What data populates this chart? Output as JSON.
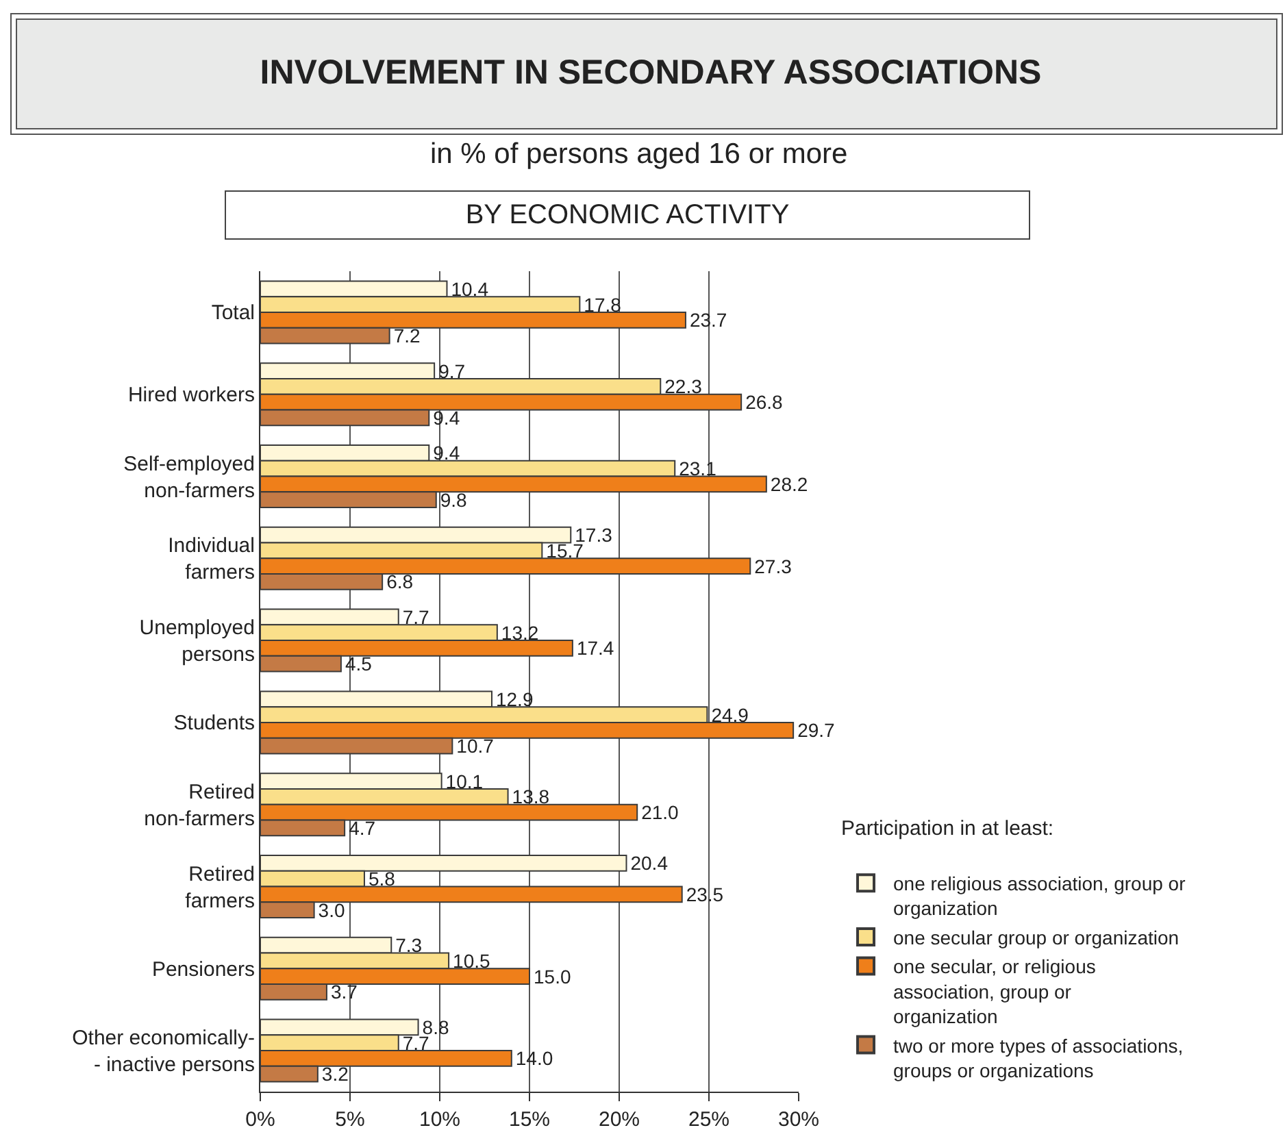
{
  "chart_data": {
    "type": "bar",
    "orientation": "horizontal",
    "title": "INVOLVEMENT IN SECONDARY ASSOCIATIONS",
    "subtitle": "in % of persons aged 16 or more",
    "annotations": [
      "BY ECONOMIC ACTIVITY"
    ],
    "legend_title": "Participation in at least:",
    "categories": [
      "Total",
      "Hired workers",
      "Self-employed\nnon-farmers",
      "Individual\nfarmers",
      "Unemployed\npersons",
      "Students",
      "Retired\nnon-farmers",
      "Retired\nfarmers",
      "Pensioners",
      "Other economically-\n- inactive persons"
    ],
    "series": [
      {
        "name": "one religious association, group or\norganization",
        "color": "#fff7d9",
        "values": [
          10.4,
          9.7,
          9.4,
          17.3,
          7.7,
          12.9,
          10.1,
          20.4,
          7.3,
          8.8
        ],
        "value_labels": [
          "10.4",
          "9.7",
          "9.4",
          "17.3",
          "7.7",
          "12.9",
          "10.1",
          "20.4",
          "7.3",
          "8.8"
        ]
      },
      {
        "name": "one secular group or organization",
        "color": "#fadf8a",
        "values": [
          17.8,
          22.3,
          23.1,
          15.7,
          13.2,
          24.9,
          13.8,
          5.8,
          10.5,
          7.7
        ],
        "value_labels": [
          "17.8",
          "22.3",
          "23.1",
          "15.7",
          "13.2",
          "24.9",
          "13.8",
          "5.8",
          "10.5",
          "7.7"
        ]
      },
      {
        "name": "one secular, or religious\nassociation, group or\norganization",
        "color": "#ef7f1a",
        "values": [
          23.7,
          26.8,
          28.2,
          27.3,
          17.4,
          29.7,
          21.0,
          23.5,
          15.0,
          14.0
        ],
        "value_labels": [
          "23.7",
          "26.8",
          "28.2",
          "27.3",
          "17.4",
          "29.7",
          "21.0",
          "23.5",
          "15.0",
          "14.0"
        ]
      },
      {
        "name": "two or more types of associations,\ngroups or organizations",
        "color": "#c47a45",
        "values": [
          7.2,
          9.4,
          9.8,
          6.8,
          4.5,
          10.7,
          4.7,
          3.0,
          3.7,
          3.2
        ],
        "value_labels": [
          "7.2",
          "9.4",
          "9.8",
          "6.8",
          "4.5",
          "10.7",
          "4.7",
          "3.0",
          "3.7",
          "3.2"
        ]
      }
    ],
    "xlim": [
      0,
      30
    ],
    "xticks": [
      {
        "value": 0,
        "label": "0%"
      },
      {
        "value": 5,
        "label": "5%"
      },
      {
        "value": 10,
        "label": "10%"
      },
      {
        "value": 15,
        "label": "15%"
      },
      {
        "value": 20,
        "label": "20%"
      },
      {
        "value": 25,
        "label": "25%"
      },
      {
        "value": 30,
        "label": "30%"
      }
    ],
    "grid": "x",
    "legend": "bottom right"
  }
}
